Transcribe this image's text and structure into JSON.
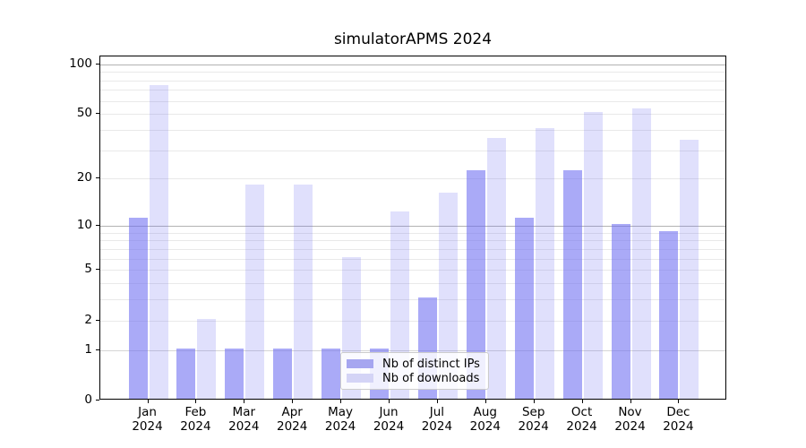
{
  "title": "simulatorAPMS 2024",
  "chart_data": {
    "type": "bar",
    "title": "simulatorAPMS 2024",
    "categories": [
      "Jan 2024",
      "Feb 2024",
      "Mar 2024",
      "Apr 2024",
      "May 2024",
      "Jun 2024",
      "Jul 2024",
      "Aug 2024",
      "Sep 2024",
      "Oct 2024",
      "Nov 2024",
      "Dec 2024"
    ],
    "x_line1": [
      "Jan",
      "Feb",
      "Mar",
      "Apr",
      "May",
      "Jun",
      "Jul",
      "Aug",
      "Sep",
      "Oct",
      "Nov",
      "Dec"
    ],
    "x_line2": "2024",
    "series": [
      {
        "name": "Nb of distinct IPs",
        "color": "#a6a6f2",
        "fill": "rgba(108,108,242,0.58)",
        "values": [
          11,
          1,
          1,
          1,
          1,
          1,
          3,
          22,
          11,
          22,
          10,
          9
        ]
      },
      {
        "name": "Nb of downloads",
        "color": "#dcdcfa",
        "fill": "rgba(108,108,242,0.21)",
        "values": [
          73,
          2,
          18,
          18,
          6,
          12,
          16,
          35,
          40,
          50,
          53,
          34
        ]
      }
    ],
    "xlabel": "",
    "ylabel": "",
    "yscale": "log1p",
    "ylim": [
      0,
      100
    ],
    "ytick_values": [
      0,
      1,
      2,
      5,
      10,
      20,
      50,
      100
    ],
    "ytick_labels": [
      "0",
      "1",
      "2",
      "5",
      "10",
      "20",
      "50",
      "100"
    ],
    "major_gridlines": [
      1,
      10,
      100
    ],
    "minor_gridlines": [
      2,
      3,
      4,
      5,
      6,
      7,
      8,
      9,
      20,
      30,
      40,
      50,
      60,
      70,
      80,
      90
    ],
    "grid": true,
    "legend_position": "lower center"
  },
  "legend": {
    "items": [
      {
        "label": "Nb of distinct IPs",
        "swatch_color": "#a6a6f0"
      },
      {
        "label": "Nb of downloads",
        "swatch_color": "#d4d4f6"
      }
    ]
  }
}
